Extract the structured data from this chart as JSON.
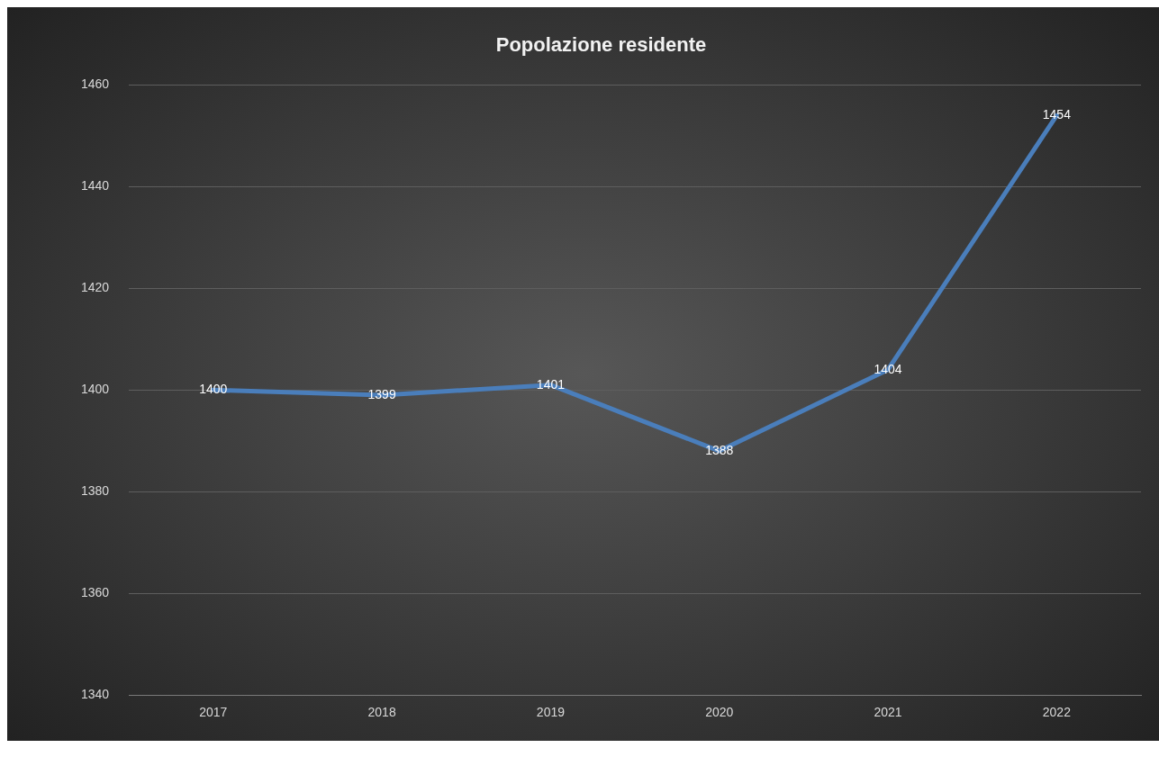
{
  "chart_data": {
    "type": "line",
    "title": "Popolazione residente",
    "categories": [
      "2017",
      "2018",
      "2019",
      "2020",
      "2021",
      "2022"
    ],
    "series": [
      {
        "color": "#4a7ebb",
        "values": [
          1400,
          1399,
          1401,
          1388,
          1404,
          1454
        ]
      }
    ],
    "ylim": [
      1340,
      1460
    ],
    "yticks": [
      1340,
      1360,
      1380,
      1400,
      1420,
      1440,
      1460
    ],
    "grid": "y",
    "legend": false,
    "marker": "none",
    "line_style": "solid",
    "data_labels": true
  }
}
